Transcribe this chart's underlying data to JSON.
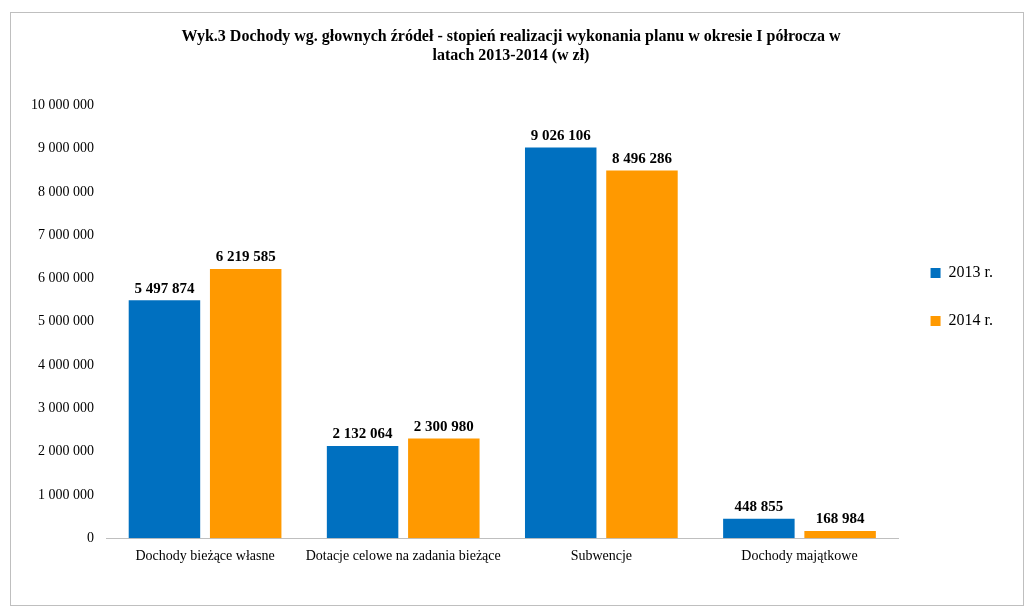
{
  "chart_data": {
    "type": "bar",
    "title": "Wyk.3 Dochody wg. głownych źródeł - stopień realizacji wykonania planu w okresie I półrocza w latach 2013-2014 (w zł)",
    "categories": [
      "Dochody bieżące własne",
      "Dotacje celowe na zadania bieżące",
      "Subwencje",
      "Dochody majątkowe"
    ],
    "series": [
      {
        "name": "2013 r.",
        "color": "#0070c0",
        "values": [
          5497874,
          2132064,
          9026106,
          448855
        ],
        "value_labels": [
          "5 497 874",
          "2 132 064",
          "9 026 106",
          "448 855"
        ]
      },
      {
        "name": "2014 r.",
        "color": "#ff9900",
        "values": [
          6219585,
          2300980,
          8496286,
          168984
        ],
        "value_labels": [
          "6 219 585",
          "2 300 980",
          "8 496 286",
          "168 984"
        ]
      }
    ],
    "ylim": [
      0,
      10000000
    ],
    "yticks": [
      {
        "value": 0,
        "label": "0"
      },
      {
        "value": 1000000,
        "label": "1 000 000"
      },
      {
        "value": 2000000,
        "label": "2 000 000"
      },
      {
        "value": 3000000,
        "label": "3 000 000"
      },
      {
        "value": 4000000,
        "label": "4 000 000"
      },
      {
        "value": 5000000,
        "label": "5 000 000"
      },
      {
        "value": 6000000,
        "label": "6 000 000"
      },
      {
        "value": 7000000,
        "label": "7 000 000"
      },
      {
        "value": 8000000,
        "label": "8 000 000"
      },
      {
        "value": 9000000,
        "label": "9 000 000"
      },
      {
        "value": 10000000,
        "label": "10 000 000"
      }
    ],
    "grid": false,
    "legend": "right"
  }
}
